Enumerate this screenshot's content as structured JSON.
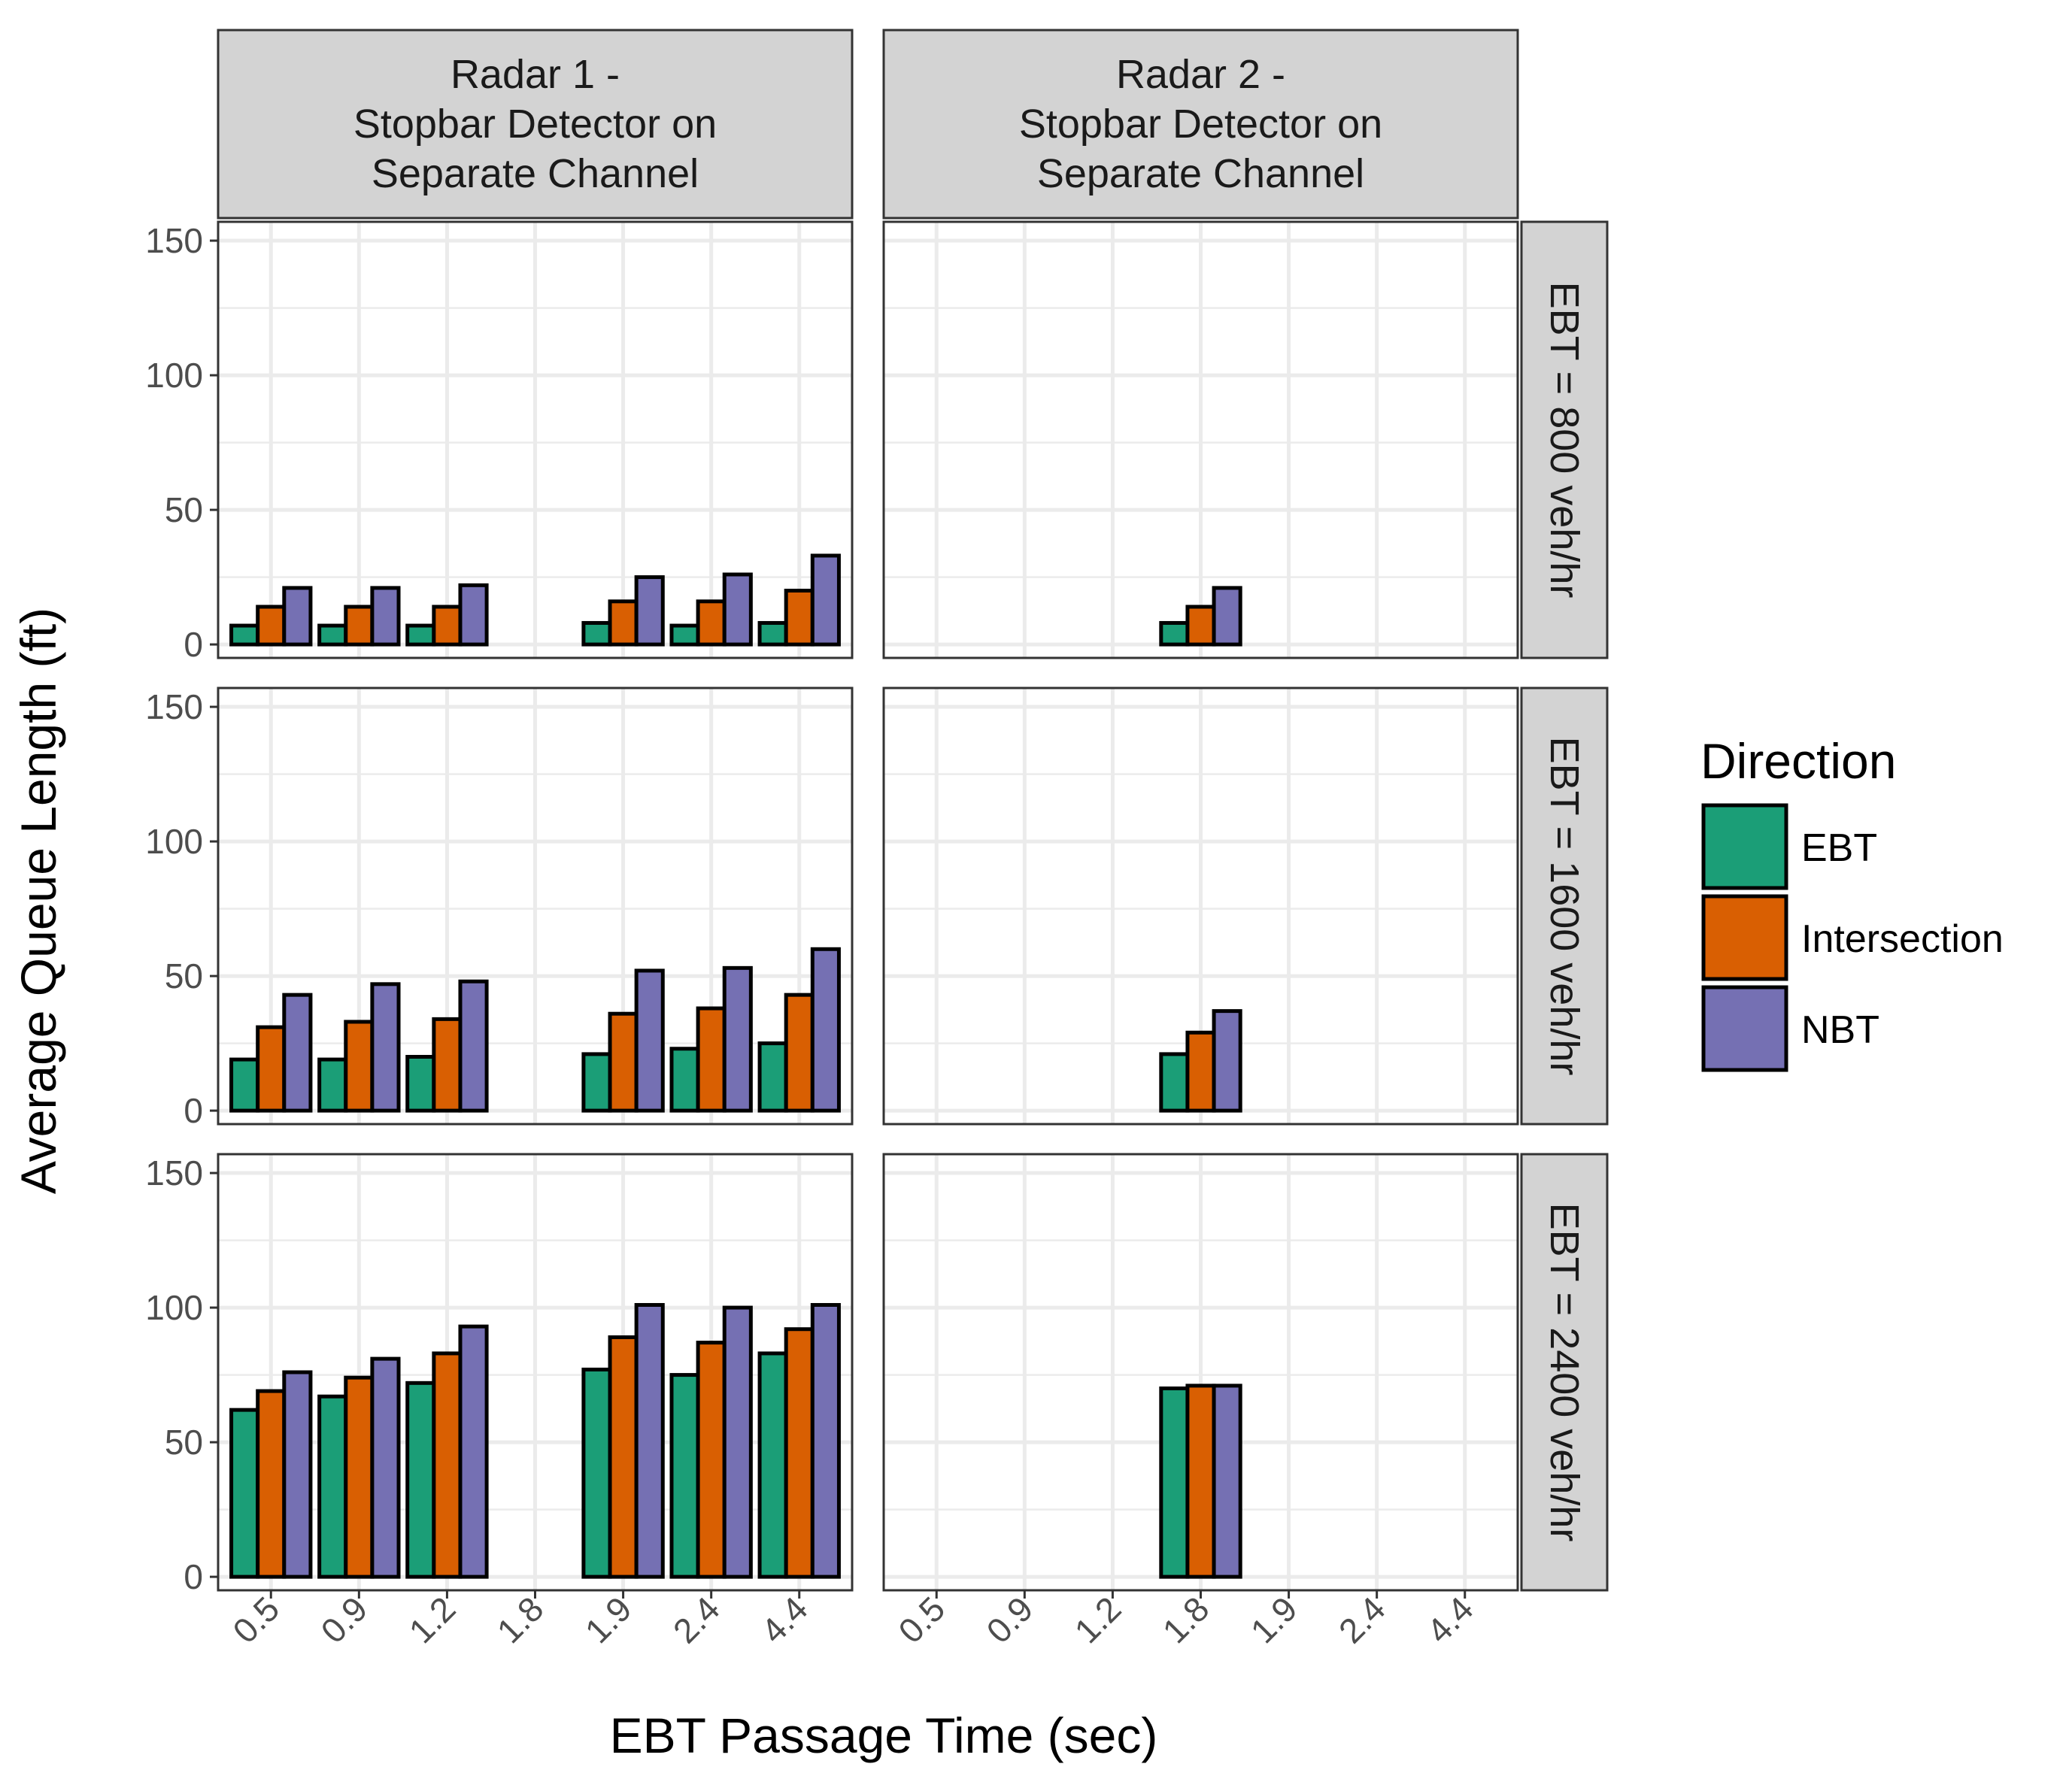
{
  "chart_data": {
    "type": "bar",
    "xlabel": "EBT Passage Time (sec)",
    "ylabel": "Average Queue Length (ft)",
    "ylim": [
      -5,
      157
    ],
    "yticks": [
      0,
      50,
      100,
      150
    ],
    "categories": [
      "0.5",
      "0.9",
      "1.2",
      "1.8",
      "1.9",
      "2.4",
      "4.4"
    ],
    "grid": true,
    "legend": {
      "title": "Direction",
      "position": "right",
      "items": [
        {
          "name": "EBT",
          "color": "#1b9e77"
        },
        {
          "name": "Intersection",
          "color": "#d95f02"
        },
        {
          "name": "NBT",
          "color": "#7570b3"
        }
      ]
    },
    "columns": [
      {
        "label": "Radar 1 -\nStopbar Detector on\nSeparate Channel",
        "lines": [
          "Radar 1 -",
          "Stopbar Detector on",
          "Separate Channel"
        ]
      },
      {
        "label": "Radar 2 -\nStopbar Detector on\nSeparate Channel",
        "lines": [
          "Radar 2 -",
          "Stopbar Detector on",
          "Separate Channel"
        ]
      }
    ],
    "rows": [
      {
        "label": "EBT = 800 veh/hr"
      },
      {
        "label": "EBT = 1600 veh/hr"
      },
      {
        "label": "EBT = 2400 veh/hr"
      }
    ],
    "panels": [
      {
        "column": 0,
        "row": 0,
        "series": [
          {
            "name": "EBT",
            "values": [
              7,
              7,
              7,
              null,
              8,
              7,
              8
            ]
          },
          {
            "name": "Intersection",
            "values": [
              14,
              14,
              14,
              null,
              16,
              16,
              20
            ]
          },
          {
            "name": "NBT",
            "values": [
              21,
              21,
              22,
              null,
              25,
              26,
              33
            ]
          }
        ]
      },
      {
        "column": 1,
        "row": 0,
        "series": [
          {
            "name": "EBT",
            "values": [
              null,
              null,
              null,
              8,
              null,
              null,
              null
            ]
          },
          {
            "name": "Intersection",
            "values": [
              null,
              null,
              null,
              14,
              null,
              null,
              null
            ]
          },
          {
            "name": "NBT",
            "values": [
              null,
              null,
              null,
              21,
              null,
              null,
              null
            ]
          }
        ]
      },
      {
        "column": 0,
        "row": 1,
        "series": [
          {
            "name": "EBT",
            "values": [
              19,
              19,
              20,
              null,
              21,
              23,
              25
            ]
          },
          {
            "name": "Intersection",
            "values": [
              31,
              33,
              34,
              null,
              36,
              38,
              43
            ]
          },
          {
            "name": "NBT",
            "values": [
              43,
              47,
              48,
              null,
              52,
              53,
              60
            ]
          }
        ]
      },
      {
        "column": 1,
        "row": 1,
        "series": [
          {
            "name": "EBT",
            "values": [
              null,
              null,
              null,
              21,
              null,
              null,
              null
            ]
          },
          {
            "name": "Intersection",
            "values": [
              null,
              null,
              null,
              29,
              null,
              null,
              null
            ]
          },
          {
            "name": "NBT",
            "values": [
              null,
              null,
              null,
              37,
              null,
              null,
              null
            ]
          }
        ]
      },
      {
        "column": 0,
        "row": 2,
        "series": [
          {
            "name": "EBT",
            "values": [
              62,
              67,
              72,
              null,
              77,
              75,
              83
            ]
          },
          {
            "name": "Intersection",
            "values": [
              69,
              74,
              83,
              null,
              89,
              87,
              92
            ]
          },
          {
            "name": "NBT",
            "values": [
              76,
              81,
              93,
              null,
              101,
              100,
              101
            ]
          }
        ]
      },
      {
        "column": 1,
        "row": 2,
        "series": [
          {
            "name": "EBT",
            "values": [
              null,
              null,
              null,
              70,
              null,
              null,
              null
            ]
          },
          {
            "name": "Intersection",
            "values": [
              null,
              null,
              null,
              71,
              null,
              null,
              null
            ]
          },
          {
            "name": "NBT",
            "values": [
              null,
              null,
              null,
              71,
              null,
              null,
              null
            ]
          }
        ]
      }
    ]
  }
}
